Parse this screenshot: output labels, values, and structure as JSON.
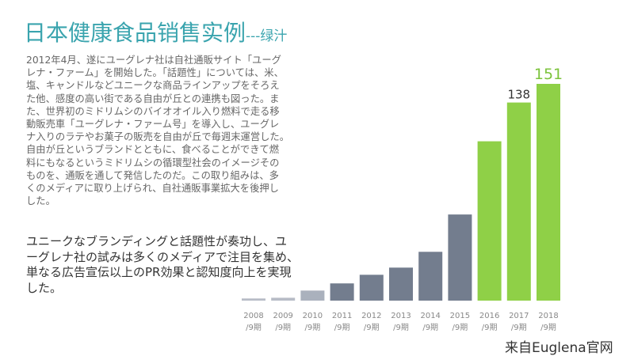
{
  "title": {
    "main": "日本健康食品销售实例",
    "sub": "---绿汁"
  },
  "body_text": [
    "2012年4月、遂にユーグレナ社は自社通販サイト「ユーグ",
    "レナ・ファーム」を開始した。「話題性」については、米、",
    "塩、キャンドルなどユニークな商品ラインアップをそろえ",
    "た他、感度の高い街である自由が丘との連携も図った。ま",
    "た、世界初のミドリムシのバイオオイル入り燃料で走る移",
    "動販売車「ユーグレナ・ファーム号」を導入し、ユーグレ",
    "ナ入りのラテやお菓子の販売を自由が丘で毎週末運営した。",
    "自由が丘というブランドとともに、食べることができて燃",
    "料にもなるというミドリムシの循環型社会のイメージその",
    "ものを、通販を通して発信したのだ。この取り組みは、多",
    "くのメディアに取り上げられ、自社通販事業拡大を後押し",
    "した。"
  ],
  "summary_text": [
    "ユニークなブランディングと話題性が奏功し、ユ",
    "ーグレナ社の試みは多くのメディアで注目を集め、",
    "単なる広告宣伝以上のPR効果と認知度向上を実現",
    "した。"
  ],
  "footer": "来自Euglena官网",
  "chart_data": {
    "type": "bar",
    "categories": [
      "2008",
      "2009",
      "2010",
      "2011",
      "2012",
      "2013",
      "2014",
      "2015",
      "2016",
      "2017",
      "2018"
    ],
    "category_suffix": "/9期",
    "values": [
      1.5,
      2,
      7,
      12,
      18,
      23,
      34,
      60,
      111,
      138,
      151
    ],
    "data_labels": {
      "9": "138",
      "10": "151"
    },
    "colors": [
      "#b7bcc6",
      "#b7bcc6",
      "#aab1bd",
      "#737d8e",
      "#737d8e",
      "#737d8e",
      "#737d8e",
      "#737d8e",
      "#8fd047",
      "#8fd047",
      "#8fd047"
    ],
    "label_colors": {
      "9": "#333333",
      "10": "#7cc33c"
    },
    "ylim": [
      0,
      151
    ],
    "grid": false
  }
}
